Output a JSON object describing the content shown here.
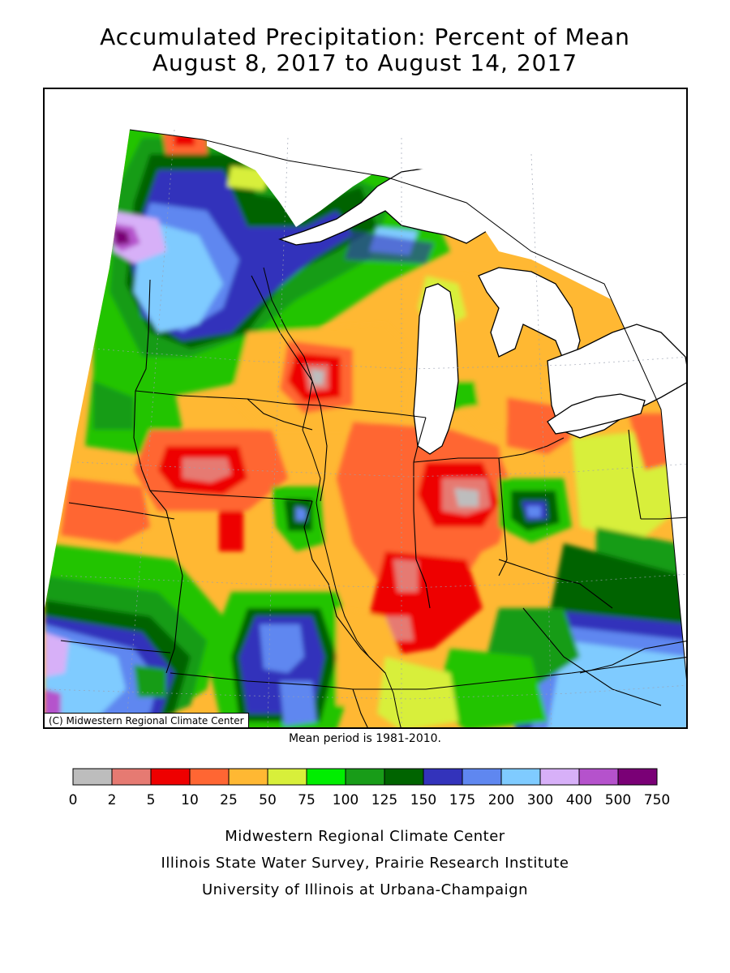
{
  "title_line1": "Accumulated Precipitation: Percent of Mean",
  "title_line2": "August 8, 2017 to August 14, 2017",
  "map": {
    "credit": "(C) Midwestern Regional Climate Center",
    "water_color": "#ffffff",
    "background_color": "#22c400"
  },
  "mean_period_note": "Mean period is 1981-2010.",
  "legend": {
    "colors": [
      "#bdbdbd",
      "#e67a72",
      "#ee0000",
      "#ff6633",
      "#ffb833",
      "#d8ef3a",
      "#00ee00",
      "#189c18",
      "#006400",
      "#3333bb",
      "#5f87f0",
      "#7fcbff",
      "#d7b0f8",
      "#b552cc",
      "#7a0076"
    ],
    "tick_labels": [
      "0",
      "2",
      "5",
      "10",
      "25",
      "50",
      "75",
      "100",
      "125",
      "150",
      "175",
      "200",
      "300",
      "400",
      "500",
      "750"
    ]
  },
  "footer": {
    "line1": "Midwestern Regional Climate Center",
    "line2": "Illinois State Water Survey, Prairie Research Institute",
    "line3": "University of Illinois at Urbana-Champaign"
  }
}
